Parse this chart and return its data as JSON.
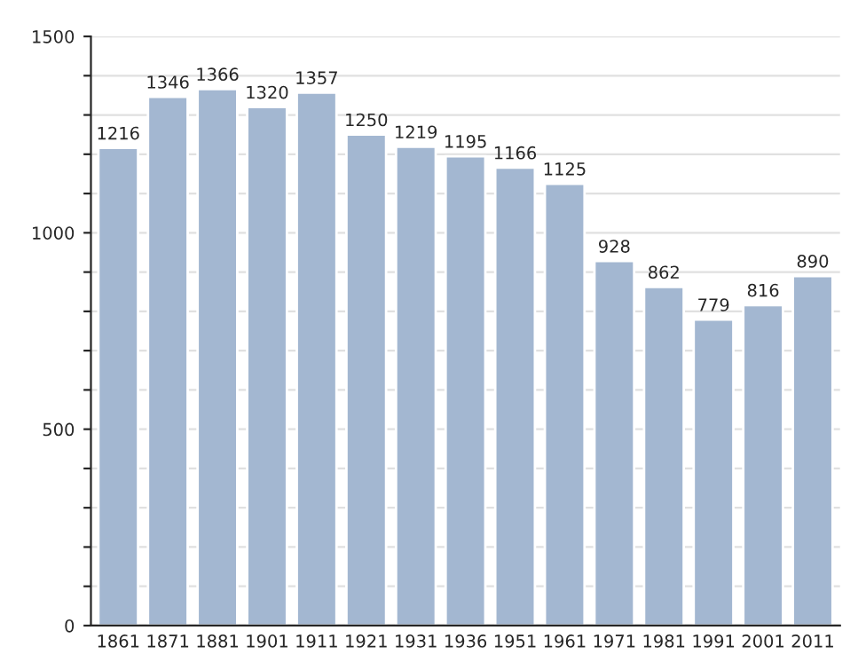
{
  "chart_data": {
    "type": "bar",
    "categories": [
      "1861",
      "1871",
      "1881",
      "1901",
      "1911",
      "1921",
      "1931",
      "1936",
      "1951",
      "1961",
      "1971",
      "1981",
      "1991",
      "2001",
      "2011"
    ],
    "values": [
      1216,
      1346,
      1366,
      1320,
      1357,
      1250,
      1219,
      1195,
      1166,
      1125,
      928,
      862,
      779,
      816,
      890
    ],
    "color": "#a3b7d1",
    "ylim": [
      0,
      1500
    ],
    "yticks": [
      0,
      {
        "value": 100,
        "label": null
      },
      {
        "value": 200,
        "label": null
      },
      {
        "value": 300,
        "label": null
      },
      {
        "value": 400,
        "label": null
      },
      500,
      {
        "value": 600,
        "label": null
      },
      {
        "value": 700,
        "label": null
      },
      {
        "value": 800,
        "label": null
      },
      {
        "value": 900,
        "label": null
      },
      1000,
      {
        "value": 1100,
        "label": null
      },
      {
        "value": 1200,
        "label": null
      },
      {
        "value": 1300,
        "label": null
      },
      {
        "value": 1400,
        "label": null
      },
      1500
    ],
    "grid": "y",
    "data_labels": true
  }
}
